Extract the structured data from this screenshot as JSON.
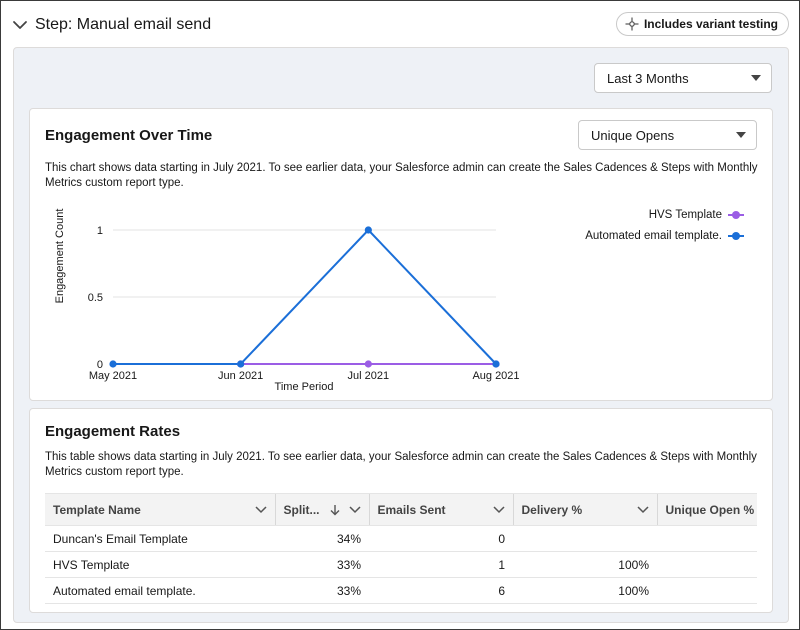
{
  "step": {
    "title": "Step: Manual email send",
    "variant_label": "Includes variant testing"
  },
  "date_filter": {
    "selected": "Last 3 Months"
  },
  "engagement_over_time": {
    "title": "Engagement Over Time",
    "metric_selected": "Unique Opens",
    "description": "This chart shows data starting in July 2021. To see earlier data, your Salesforce admin can create the Sales Cadences & Steps with Monthly Metrics custom report type."
  },
  "chart_data": {
    "type": "line",
    "x": [
      "May 2021",
      "Jun 2021",
      "Jul 2021",
      "Aug 2021"
    ],
    "xlabel": "Time Period",
    "ylabel": "Engagement Count",
    "yticks": [
      "0",
      "0.5",
      "1"
    ],
    "ylim": [
      0,
      1
    ],
    "grid": "horizontal",
    "legend": "top-right",
    "series": [
      {
        "name": "HVS Template",
        "color": "#9b5de5",
        "values": [
          null,
          0,
          0,
          0
        ]
      },
      {
        "name": "Automated email template.",
        "color": "#1b6fd8",
        "values": [
          0,
          0,
          1,
          0
        ]
      }
    ]
  },
  "engagement_rates": {
    "title": "Engagement Rates",
    "description": "This table shows data starting in July 2021. To see earlier data, your Salesforce admin can create the Sales Cadences & Steps with Monthly Metrics custom report type.",
    "columns": [
      "Template Name",
      "Split...",
      "Emails Sent",
      "Delivery %",
      "Unique Open %"
    ],
    "rows": [
      {
        "name": "Duncan's Email Template",
        "split": "34%",
        "sent": "0",
        "delivery": "",
        "open": ""
      },
      {
        "name": "HVS Template",
        "split": "33%",
        "sent": "1",
        "delivery": "100%",
        "open": ""
      },
      {
        "name": "Automated email template.",
        "split": "33%",
        "sent": "6",
        "delivery": "100%",
        "open": ""
      }
    ]
  }
}
